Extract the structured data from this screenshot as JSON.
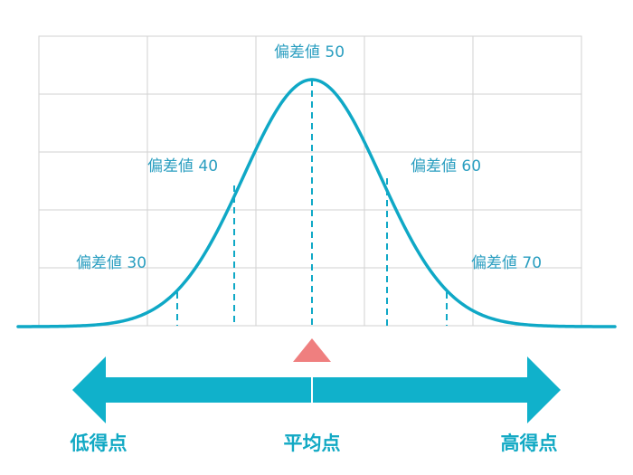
{
  "labels": {
    "dev30": "偏差値 30",
    "dev40": "偏差値 40",
    "dev50": "偏差値 50",
    "dev60": "偏差値 60",
    "dev70": "偏差値 70"
  },
  "axis": {
    "low": "低得点",
    "mean": "平均点",
    "high": "高得点"
  },
  "colors": {
    "curve": "#0fa8c6",
    "arrow": "#10b1cb",
    "grid": "#d2d2d2",
    "marker": "#ef7f7f",
    "label": "#2a9ec0"
  }
}
